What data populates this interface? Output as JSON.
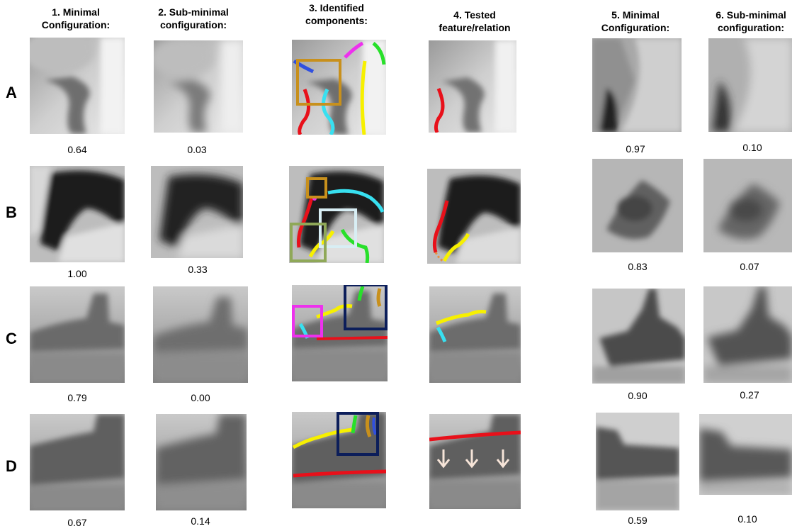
{
  "headers": [
    {
      "line1": "1. Minimal",
      "line2": "Configuration:"
    },
    {
      "line1": "2. Sub-minimal",
      "line2": "configuration:"
    },
    {
      "line1": "3. Identified",
      "line2": "components:"
    },
    {
      "line1": "4. Tested",
      "line2": "feature/relation"
    },
    {
      "line1": "5. Minimal",
      "line2": "Configuration:"
    },
    {
      "line1": "6. Sub-minimal",
      "line2": "configuration:"
    }
  ],
  "rows": [
    {
      "label": "A",
      "scores": {
        "c1": "0.64",
        "c2": "0.03",
        "c5": "0.97",
        "c6": "0.10"
      }
    },
    {
      "label": "B",
      "scores": {
        "c1": "1.00",
        "c2": "0.33",
        "c5": "0.83",
        "c6": "0.07"
      }
    },
    {
      "label": "C",
      "scores": {
        "c1": "0.79",
        "c2": "0.00",
        "c5": "0.90",
        "c6": "0.27"
      }
    },
    {
      "label": "D",
      "scores": {
        "c1": "0.67",
        "c2": "0.14",
        "c5": "0.59",
        "c6": "0.10"
      }
    }
  ],
  "colors": {
    "red": "#e8101a",
    "yellow": "#f7f000",
    "cyan": "#38e0f0",
    "green": "#28e02a",
    "magenta": "#ee30ee",
    "blue": "#3050e0",
    "gold": "#c8901c",
    "navy": "#0c1e5a",
    "olive": "#8fa858",
    "lightblue": "#d8eef4",
    "orange": "#e89040",
    "arrow": "#f6e4d8"
  }
}
